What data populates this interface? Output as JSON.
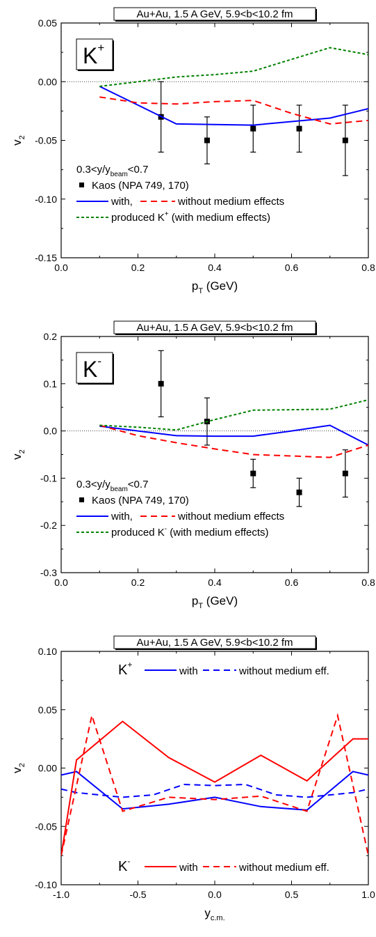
{
  "chart_data": [
    {
      "type": "scatter",
      "title": "Au+Au, 1.5 A GeV, 5.9<b<10.2 fm",
      "tag": {
        "main": "K",
        "sup": "+"
      },
      "xlabel": {
        "main": "p",
        "sub": "T",
        "rest": " (GeV)"
      },
      "ylabel": {
        "main": "v",
        "sub": "2"
      },
      "xlim": [
        0.0,
        0.8
      ],
      "ylim": [
        -0.15,
        0.05
      ],
      "xticks": [
        0.0,
        0.2,
        0.4,
        0.6,
        0.8
      ],
      "xtick_labels": [
        "0.0",
        "0.2",
        "0.4",
        "0.6",
        "0.8"
      ],
      "yticks": [
        -0.15,
        -0.1,
        -0.05,
        0.0,
        0.05
      ],
      "ytick_labels": [
        "-0.15",
        "-0.10",
        "-0.05",
        "0.00",
        "0.05"
      ],
      "zero_line": true,
      "legend_placement": "bottom-left",
      "legend_title": {
        "pre": "0.3<y/y",
        "sub": "beam",
        "post": "<0.7"
      },
      "legend": [
        {
          "kind": "marker",
          "label": "Kaos (NPA 749, 170)"
        },
        {
          "kind": "pair",
          "label_a": "with,",
          "label_b": "without medium effects",
          "color_a": "#0000ff",
          "color_b": "#ff0000"
        },
        {
          "kind": "line",
          "label_pre": "produced K",
          "label_sup": "+",
          "label_post": " (with medium effects)",
          "color": "#008000"
        }
      ],
      "series": [
        {
          "name": "Kaos (NPA 749, 170)",
          "style": "points",
          "color": "#000000",
          "x": [
            0.26,
            0.38,
            0.5,
            0.62,
            0.74
          ],
          "y": [
            -0.03,
            -0.05,
            -0.04,
            -0.04,
            -0.05
          ],
          "yerr": [
            0.03,
            0.02,
            0.02,
            0.02,
            0.03
          ]
        },
        {
          "name": "with",
          "style": "solid",
          "color": "#0000ff",
          "x": [
            0.1,
            0.2,
            0.3,
            0.4,
            0.5,
            0.6,
            0.7,
            0.8
          ],
          "y": [
            -0.004,
            -0.02,
            -0.036,
            -0.0365,
            -0.037,
            -0.034,
            -0.031,
            -0.023
          ]
        },
        {
          "name": "without medium effects",
          "style": "dash",
          "color": "#ff0000",
          "x": [
            0.1,
            0.2,
            0.3,
            0.4,
            0.5,
            0.6,
            0.7,
            0.8
          ],
          "y": [
            -0.013,
            -0.018,
            -0.019,
            -0.017,
            -0.016,
            -0.027,
            -0.036,
            -0.033
          ]
        },
        {
          "name": "produced K+",
          "style": "dot",
          "color": "#008000",
          "x": [
            0.1,
            0.2,
            0.3,
            0.4,
            0.5,
            0.6,
            0.7,
            0.8
          ],
          "y": [
            -0.004,
            0.0,
            0.004,
            0.006,
            0.009,
            0.019,
            0.029,
            0.023
          ]
        }
      ]
    },
    {
      "type": "scatter",
      "title": "Au+Au, 1.5 A GeV, 5.9<b<10.2 fm",
      "tag": {
        "main": "K",
        "sup": "-"
      },
      "xlabel": {
        "main": "p",
        "sub": "T",
        "rest": " (GeV)"
      },
      "ylabel": {
        "main": "v",
        "sub": "2"
      },
      "xlim": [
        0.0,
        0.8
      ],
      "ylim": [
        -0.3,
        0.2
      ],
      "xticks": [
        0.0,
        0.2,
        0.4,
        0.6,
        0.8
      ],
      "xtick_labels": [
        "0.0",
        "0.2",
        "0.4",
        "0.6",
        "0.8"
      ],
      "yticks": [
        -0.3,
        -0.2,
        -0.1,
        0.0,
        0.1,
        0.2
      ],
      "ytick_labels": [
        "-0.3",
        "-0.2",
        "-0.1",
        "0.0",
        "0.1",
        "0.2"
      ],
      "zero_line": true,
      "legend_placement": "bottom-left",
      "legend_title": {
        "pre": "0.3<y/y",
        "sub": "beam",
        "post": "<0.7"
      },
      "legend": [
        {
          "kind": "marker",
          "label": "Kaos (NPA 749, 170)"
        },
        {
          "kind": "pair",
          "label_a": "with,",
          "label_b": "without medium effects",
          "color_a": "#0000ff",
          "color_b": "#ff0000"
        },
        {
          "kind": "line",
          "label_pre": "produced K",
          "label_sup": "-",
          "label_post": " (with medium effects)",
          "color": "#008000"
        }
      ],
      "series": [
        {
          "name": "Kaos (NPA 749, 170)",
          "style": "points",
          "color": "#000000",
          "x": [
            0.26,
            0.38,
            0.5,
            0.62,
            0.74
          ],
          "y": [
            0.1,
            0.02,
            -0.09,
            -0.13,
            -0.09
          ],
          "yerr": [
            0.07,
            0.05,
            0.03,
            0.03,
            0.05
          ]
        },
        {
          "name": "with",
          "style": "solid",
          "color": "#0000ff",
          "x": [
            0.1,
            0.2,
            0.3,
            0.4,
            0.5,
            0.6,
            0.7,
            0.8
          ],
          "y": [
            0.01,
            0.0,
            -0.01,
            -0.011,
            -0.011,
            0.0,
            0.012,
            -0.03
          ]
        },
        {
          "name": "without medium effects",
          "style": "dash",
          "color": "#ff0000",
          "x": [
            0.1,
            0.2,
            0.3,
            0.4,
            0.5,
            0.6,
            0.7,
            0.8
          ],
          "y": [
            0.012,
            -0.01,
            -0.025,
            -0.038,
            -0.05,
            -0.053,
            -0.056,
            -0.03
          ]
        },
        {
          "name": "produced K-",
          "style": "dot",
          "color": "#008000",
          "x": [
            0.1,
            0.2,
            0.3,
            0.4,
            0.5,
            0.6,
            0.7,
            0.8
          ],
          "y": [
            0.012,
            0.008,
            0.002,
            0.024,
            0.044,
            0.045,
            0.046,
            0.066
          ]
        }
      ]
    },
    {
      "type": "line",
      "title": "Au+Au, 1.5 A GeV, 5.9<b<10.2 fm",
      "xlabel": {
        "main": "y",
        "sub": "c.m.",
        "rest": ""
      },
      "ylabel": {
        "main": "v",
        "sub": "2"
      },
      "xlim": [
        -1.0,
        1.0
      ],
      "ylim": [
        -0.1,
        0.1
      ],
      "xticks": [
        -1.0,
        -0.5,
        0.0,
        0.5,
        1.0
      ],
      "xtick_labels": [
        "-1.0",
        "-0.5",
        "0.0",
        "0.5",
        "1.0"
      ],
      "yticks": [
        -0.1,
        -0.05,
        0.0,
        0.05,
        0.1
      ],
      "ytick_labels": [
        "-0.10",
        "-0.05",
        "0.00",
        "0.05",
        "0.10"
      ],
      "zero_line": false,
      "legend_placement": "top-right and bottom-right",
      "legend_groups": [
        {
          "particle": {
            "main": "K",
            "sup": "+"
          },
          "color": "#0000ff",
          "label_a": "with",
          "label_b": "without medium eff."
        },
        {
          "particle": {
            "main": "K",
            "sup": "-"
          },
          "color": "#ff0000",
          "label_a": "with",
          "label_b": "without medium eff."
        }
      ],
      "series": [
        {
          "name": "K+ with",
          "style": "solid",
          "color": "#0000ff",
          "x": [
            -1.0,
            -0.9,
            -0.6,
            -0.3,
            0.0,
            0.3,
            0.6,
            0.9,
            1.0
          ],
          "y": [
            -0.006,
            -0.003,
            -0.035,
            -0.031,
            -0.025,
            -0.033,
            -0.036,
            -0.003,
            -0.006
          ]
        },
        {
          "name": "K+ without medium eff.",
          "style": "dash",
          "color": "#0000ff",
          "x": [
            -1.0,
            -0.9,
            -0.6,
            -0.4,
            -0.2,
            0.0,
            0.2,
            0.4,
            0.6,
            0.9,
            1.0
          ],
          "y": [
            -0.018,
            -0.021,
            -0.025,
            -0.023,
            -0.014,
            -0.015,
            -0.014,
            -0.023,
            -0.025,
            -0.021,
            -0.018
          ]
        },
        {
          "name": "K- with",
          "style": "solid",
          "color": "#ff0000",
          "x": [
            -1.0,
            -0.9,
            -0.6,
            -0.3,
            0.0,
            0.3,
            0.6,
            0.9,
            1.0
          ],
          "y": [
            -0.075,
            0.007,
            0.04,
            0.009,
            -0.012,
            0.011,
            -0.011,
            0.025,
            0.025
          ]
        },
        {
          "name": "K- without medium eff.",
          "style": "dash",
          "color": "#ff0000",
          "x": [
            -1.0,
            -0.8,
            -0.6,
            -0.3,
            0.0,
            0.3,
            0.6,
            0.8,
            1.0
          ],
          "y": [
            -0.075,
            0.045,
            -0.037,
            -0.025,
            -0.027,
            -0.024,
            -0.037,
            0.045,
            -0.075
          ]
        }
      ]
    }
  ]
}
